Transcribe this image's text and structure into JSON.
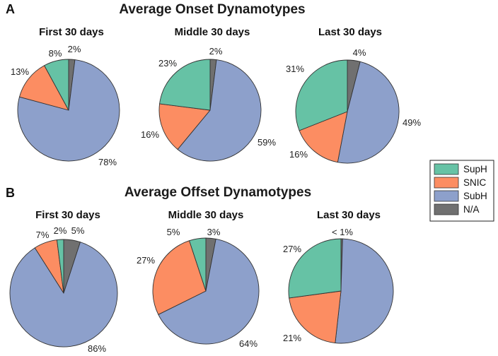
{
  "figure": {
    "legend": [
      {
        "key": "SupH",
        "label": "SupH",
        "color": "#66c2a5"
      },
      {
        "key": "SNIC",
        "label": "SNIC",
        "color": "#fc8d62"
      },
      {
        "key": "SubH",
        "label": "SubH",
        "color": "#8da0cb"
      },
      {
        "key": "NA",
        "label": "N/A",
        "color": "#707070"
      }
    ]
  },
  "chart_data": [
    {
      "type": "pie",
      "panel": "A",
      "section": "Average Onset Dynamotypes",
      "title": "First 30 days",
      "categories": [
        "SupH",
        "SNIC",
        "SubH",
        "N/A"
      ],
      "values": [
        8,
        13,
        78,
        2
      ],
      "labels": [
        "8%",
        "13%",
        "78%",
        "2%"
      ]
    },
    {
      "type": "pie",
      "panel": "A",
      "section": "Average Onset Dynamotypes",
      "title": "Middle 30 days",
      "categories": [
        "SupH",
        "SNIC",
        "SubH",
        "N/A"
      ],
      "values": [
        23,
        16,
        59,
        2
      ],
      "labels": [
        "23%",
        "16%",
        "59%",
        "2%"
      ]
    },
    {
      "type": "pie",
      "panel": "A",
      "section": "Average Onset Dynamotypes",
      "title": "Last 30 days",
      "categories": [
        "SupH",
        "SNIC",
        "SubH",
        "N/A"
      ],
      "values": [
        31,
        16,
        49,
        4
      ],
      "labels": [
        "31%",
        "16%",
        "49%",
        "4%"
      ]
    },
    {
      "type": "pie",
      "panel": "B",
      "section": "Average Offset Dynamotypes",
      "title": "First 30 days",
      "categories": [
        "SupH",
        "SNIC",
        "SubH",
        "N/A"
      ],
      "values": [
        2,
        7,
        86,
        5
      ],
      "labels": [
        "2%",
        "7%",
        "86%",
        "5%"
      ]
    },
    {
      "type": "pie",
      "panel": "B",
      "section": "Average Offset Dynamotypes",
      "title": "Middle 30 days",
      "categories": [
        "SupH",
        "SNIC",
        "SubH",
        "N/A"
      ],
      "values": [
        5,
        27,
        64,
        3
      ],
      "labels": [
        "5%",
        "27%",
        "64%",
        "3%"
      ]
    },
    {
      "type": "pie",
      "panel": "B",
      "section": "Average Offset Dynamotypes",
      "title": "Last 30 days",
      "categories": [
        "SupH",
        "SNIC",
        "SubH",
        "N/A"
      ],
      "values": [
        27,
        21,
        51,
        0.5
      ],
      "labels": [
        "27%",
        "21%",
        "",
        "< 1%"
      ]
    }
  ]
}
